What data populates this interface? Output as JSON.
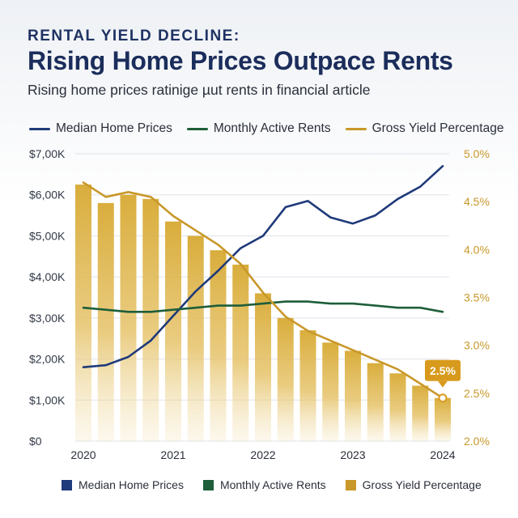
{
  "header": {
    "kicker": "RENTAL YIELD DECLINE:",
    "title": "Rising Home Prices Outpace Rents",
    "subtitle": "Rising home prices ratinige µut rents in financial article"
  },
  "legend_top": [
    {
      "label": "Median Home Prices",
      "color": "#1f3a7a"
    },
    {
      "label": "Monthly Active Rents",
      "color": "#1e5e3a"
    },
    {
      "label": "Gross Yield Percentage",
      "color": "#c9982a"
    }
  ],
  "legend_bottom": [
    {
      "label": "Median Home Prices",
      "color": "#1f3a7a"
    },
    {
      "label": "Monthly Active Rents",
      "color": "#1e5e3a"
    },
    {
      "label": "Gross Yield Percentage",
      "color": "#c9982a"
    }
  ],
  "chart_data": {
    "type": "bar+line",
    "title": "Rising Home Prices Outpace Rents",
    "x_ticks": [
      "2020",
      "2021",
      "2022",
      "2023",
      "2024"
    ],
    "x_range": [
      2020,
      2024
    ],
    "left_axis": {
      "range": [
        0,
        7000
      ],
      "ticks": [
        {
          "value": 0,
          "label": "$0"
        },
        {
          "value": 1000,
          "label": "$1,00K"
        },
        {
          "value": 2000,
          "label": "$2,00K"
        },
        {
          "value": 3000,
          "label": "$3,00K"
        },
        {
          "value": 4000,
          "label": "$4,00K"
        },
        {
          "value": 5000,
          "label": "$5,00K"
        },
        {
          "value": 6000,
          "label": "$6,00K"
        },
        {
          "value": 7000,
          "label": "$7,00K"
        }
      ]
    },
    "right_axis": {
      "range": [
        2.0,
        5.0
      ],
      "ticks": [
        {
          "value": 2.0,
          "label": "2.0%"
        },
        {
          "value": 2.5,
          "label": "2.5%"
        },
        {
          "value": 3.0,
          "label": "3.0%"
        },
        {
          "value": 3.5,
          "label": "3.5%"
        },
        {
          "value": 4.0,
          "label": "4.0%"
        },
        {
          "value": 4.5,
          "label": "4.5%"
        },
        {
          "value": 5.0,
          "label": "5.0%"
        }
      ]
    },
    "bars": {
      "name": "Gross Yield Percentage",
      "axis": "left",
      "x": [
        2020.0,
        2020.25,
        2020.5,
        2020.75,
        2021.0,
        2021.25,
        2021.5,
        2021.75,
        2022.0,
        2022.25,
        2022.5,
        2022.75,
        2023.0,
        2023.25,
        2023.5,
        2023.75,
        2024.0
      ],
      "values": [
        6250,
        5800,
        6000,
        5900,
        5350,
        5000,
        4650,
        4300,
        3600,
        3000,
        2700,
        2400,
        2200,
        1900,
        1650,
        1350,
        1050
      ]
    },
    "series": [
      {
        "name": "Median Home Prices",
        "axis": "left",
        "color": "#1f3a7a",
        "x": [
          2020.0,
          2020.25,
          2020.5,
          2020.75,
          2021.0,
          2021.25,
          2021.5,
          2021.75,
          2022.0,
          2022.25,
          2022.5,
          2022.75,
          2023.0,
          2023.25,
          2023.5,
          2023.75,
          2024.0
        ],
        "values": [
          1800,
          1850,
          2050,
          2450,
          3050,
          3650,
          4150,
          4700,
          5000,
          5700,
          5850,
          5450,
          5300,
          5500,
          5900,
          6200,
          6700
        ]
      },
      {
        "name": "Monthly Active Rents",
        "axis": "left",
        "color": "#1e5e3a",
        "x": [
          2020.0,
          2020.25,
          2020.5,
          2020.75,
          2021.0,
          2021.25,
          2021.5,
          2021.75,
          2022.0,
          2022.25,
          2022.5,
          2022.75,
          2023.0,
          2023.25,
          2023.5,
          2023.75,
          2024.0
        ],
        "values": [
          3250,
          3200,
          3150,
          3150,
          3200,
          3250,
          3300,
          3300,
          3350,
          3400,
          3400,
          3350,
          3350,
          3300,
          3250,
          3250,
          3150
        ]
      },
      {
        "name": "Gross Yield Percentage",
        "axis": "right",
        "color": "#c9982a",
        "x": [
          2020.0,
          2020.25,
          2020.5,
          2020.75,
          2021.0,
          2021.25,
          2021.5,
          2021.75,
          2022.0,
          2022.25,
          2022.5,
          2022.75,
          2023.0,
          2023.25,
          2023.5,
          2023.75,
          2024.0
        ],
        "values": [
          4.7,
          4.55,
          4.6,
          4.55,
          4.35,
          4.2,
          4.05,
          3.85,
          3.55,
          3.3,
          3.15,
          3.05,
          2.95,
          2.85,
          2.75,
          2.6,
          2.45
        ]
      }
    ],
    "annotation": {
      "label": "2.5%",
      "x": 2024.0,
      "value": 2.45,
      "axis": "right",
      "color": "#d89a1c"
    },
    "grid": true
  }
}
